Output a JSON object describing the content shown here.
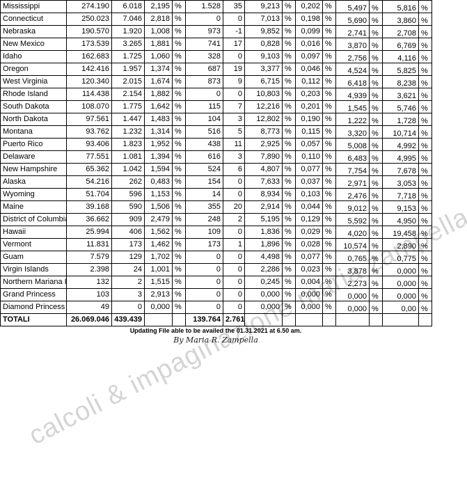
{
  "table": {
    "rows": [
      {
        "name": "Mississippi",
        "cells": [
          "274.190",
          "6.018",
          "2,195",
          "%",
          "1.528",
          "35",
          "9,213",
          "%",
          "0,202",
          "%",
          "5,497",
          "%",
          "5,816",
          "%"
        ]
      },
      {
        "name": "Connecticut",
        "cells": [
          "250.023",
          "7.046",
          "2,818",
          "%",
          "0",
          "0",
          "7,013",
          "%",
          "0,198",
          "%",
          "5,690",
          "%",
          "3,860",
          "%"
        ]
      },
      {
        "name": "Nebraska",
        "cells": [
          "190.570",
          "1.920",
          "1,008",
          "%",
          "973",
          "-1",
          "9,852",
          "%",
          "0,099",
          "%",
          "2,741",
          "%",
          "2,708",
          "%"
        ]
      },
      {
        "name": "New Mexico",
        "cells": [
          "173.539",
          "3.265",
          "1,881",
          "%",
          "741",
          "17",
          "0,828",
          "%",
          "0,016",
          "%",
          "3,870",
          "%",
          "6,769",
          "%"
        ]
      },
      {
        "name": "Idaho",
        "cells": [
          "162.683",
          "1.725",
          "1,060",
          "%",
          "328",
          "0",
          "9,103",
          "%",
          "0,097",
          "%",
          "2,756",
          "%",
          "4,116",
          "%"
        ]
      },
      {
        "name": "Oregon",
        "cells": [
          "142.416",
          "1.957",
          "1,374",
          "%",
          "687",
          "19",
          "3,377",
          "%",
          "0,046",
          "%",
          "4,524",
          "%",
          "5,825",
          "%"
        ]
      },
      {
        "name": "West Virginia",
        "cells": [
          "120.340",
          "2.015",
          "1,674",
          "%",
          "873",
          "9",
          "6,715",
          "%",
          "0,112",
          "%",
          "6,418",
          "%",
          "8,238",
          "%"
        ]
      },
      {
        "name": "Rhode Island",
        "cells": [
          "114.438",
          "2.154",
          "1,882",
          "%",
          "0",
          "0",
          "10,803",
          "%",
          "0,203",
          "%",
          "4,939",
          "%",
          "3,621",
          "%"
        ]
      },
      {
        "name": "South Dakota",
        "cells": [
          "108.070",
          "1.775",
          "1,642",
          "%",
          "115",
          "7",
          "12,216",
          "%",
          "0,201",
          "%",
          "1,545",
          "%",
          "5,746",
          "%"
        ]
      },
      {
        "name": "North Dakota",
        "cells": [
          "97.561",
          "1.447",
          "1,483",
          "%",
          "104",
          "3",
          "12,802",
          "%",
          "0,190",
          "%",
          "1,222",
          "%",
          "1,728",
          "%"
        ]
      },
      {
        "name": "Montana",
        "cells": [
          "93.762",
          "1.232",
          "1,314",
          "%",
          "516",
          "5",
          "8,773",
          "%",
          "0,115",
          "%",
          "3,320",
          "%",
          "10,714",
          "%"
        ]
      },
      {
        "name": "Puerto Rico",
        "cells": [
          "93.406",
          "1.823",
          "1,952",
          "%",
          "438",
          "11",
          "2,925",
          "%",
          "0,057",
          "%",
          "5,008",
          "%",
          "4,992",
          "%"
        ]
      },
      {
        "name": "Delaware",
        "cells": [
          "77.551",
          "1.081",
          "1,394",
          "%",
          "616",
          "3",
          "7,890",
          "%",
          "0,110",
          "%",
          "6,483",
          "%",
          "4,995",
          "%"
        ]
      },
      {
        "name": "New Hampshire",
        "cells": [
          "65.362",
          "1.042",
          "1,594",
          "%",
          "524",
          "6",
          "4,807",
          "%",
          "0,077",
          "%",
          "7,754",
          "%",
          "7,678",
          "%"
        ]
      },
      {
        "name": "Alaska",
        "cells": [
          "54.216",
          "262",
          "0,483",
          "%",
          "154",
          "0",
          "7,633",
          "%",
          "0,037",
          "%",
          "2,971",
          "%",
          "3,053",
          "%"
        ]
      },
      {
        "name": "Wyoming",
        "cells": [
          "51.704",
          "596",
          "1,153",
          "%",
          "14",
          "0",
          "8,934",
          "%",
          "0,103",
          "%",
          "2,476",
          "%",
          "7,718",
          "%"
        ]
      },
      {
        "name": "Maine",
        "cells": [
          "39.168",
          "590",
          "1,506",
          "%",
          "355",
          "20",
          "2,914",
          "%",
          "0,044",
          "%",
          "9,012",
          "%",
          "9,153",
          "%"
        ]
      },
      {
        "name": "District of Columbia",
        "cells": [
          "36.662",
          "909",
          "2,479",
          "%",
          "248",
          "2",
          "5,195",
          "%",
          "0,129",
          "%",
          "5,592",
          "%",
          "4,950",
          "%"
        ]
      },
      {
        "name": "Hawaii",
        "cells": [
          "25.994",
          "406",
          "1,562",
          "%",
          "109",
          "0",
          "1,836",
          "%",
          "0,029",
          "%",
          "4,020",
          "%",
          "19,458",
          "%"
        ]
      },
      {
        "name": "Vermont",
        "cells": [
          "11.831",
          "173",
          "1,462",
          "%",
          "173",
          "1",
          "1,896",
          "%",
          "0,028",
          "%",
          "10,574",
          "%",
          "2,890",
          "%"
        ]
      },
      {
        "name": "Guam",
        "cells": [
          "7.579",
          "129",
          "1,702",
          "%",
          "0",
          "0",
          "4,498",
          "%",
          "0,077",
          "%",
          "0,765",
          "%",
          "0,775",
          "%"
        ]
      },
      {
        "name": "Virgin Islands",
        "cells": [
          "2.398",
          "24",
          "1,001",
          "%",
          "0",
          "0",
          "2,286",
          "%",
          "0,023",
          "%",
          "3,878",
          "%",
          "0,000",
          "%"
        ]
      },
      {
        "name": "Northern Mariana Islands",
        "cells": [
          "132",
          "2",
          "1,515",
          "%",
          "0",
          "0",
          "0,245",
          "%",
          "0,004",
          "%",
          "2,273",
          "%",
          "0,000",
          "%"
        ]
      },
      {
        "name": "Grand Princess",
        "cells": [
          "103",
          "3",
          "2,913",
          "%",
          "0",
          "0",
          "0,000",
          "%",
          "0,000",
          "%",
          "0,000",
          "%",
          "0,000",
          "%"
        ]
      },
      {
        "name": "Diamond Princess",
        "cells": [
          "49",
          "0",
          "0,000",
          "%",
          "0",
          "0",
          "0,000",
          "%",
          "0,000",
          "%",
          "0,000",
          "%",
          "0,00",
          "%"
        ]
      },
      {
        "name": "TOTALI",
        "bold": true,
        "cells": [
          "26.069.046",
          "439.439",
          "",
          "",
          "139.764",
          "2.761",
          "",
          "",
          "",
          "",
          "",
          "",
          "",
          ""
        ]
      }
    ]
  },
  "footer": {
    "update_note": "Updating File able to be availed the 01.31.2021 at 6.50 am.",
    "signature": "By Maria R. Zampella"
  },
  "watermark": "calcoli & impaginazione maria zampella"
}
